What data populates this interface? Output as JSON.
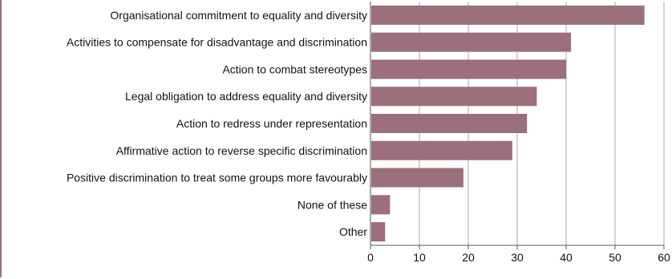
{
  "chart_data": {
    "type": "bar",
    "orientation": "horizontal",
    "categories": [
      "Organisational commitment to equality and diversity",
      "Activities to compensate for disadvantage and discrimination",
      "Action to combat stereotypes",
      "Legal obligation to address equality and diversity",
      "Action to redress under representation",
      "Affirmative action to reverse specific discrimination",
      "Positive discrimination to treat some groups more favourably",
      "None of these",
      "Other"
    ],
    "values": [
      56,
      41,
      40,
      34,
      32,
      29,
      19,
      4,
      3
    ],
    "title": "",
    "xlabel": "",
    "ylabel": "",
    "xlim": [
      0,
      60
    ],
    "x_ticks": [
      "0",
      "10",
      "20",
      "30",
      "40",
      "50",
      "60"
    ],
    "grid": "vertical",
    "colors": {
      "bar": "#9b6f7b",
      "grid": "#aaaaaa",
      "frame": "#9b6f7b"
    }
  }
}
